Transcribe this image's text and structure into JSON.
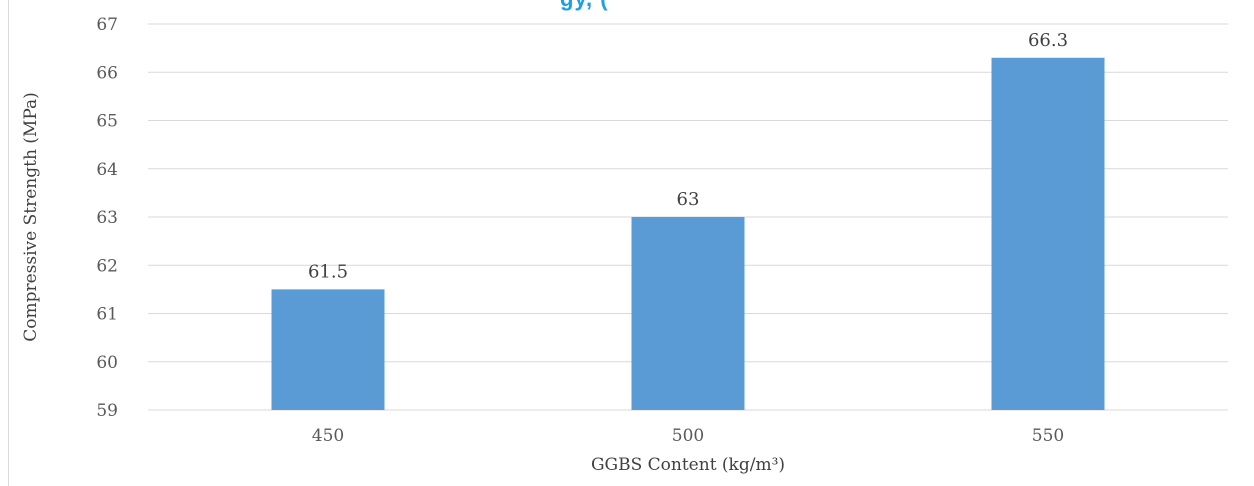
{
  "chart_data": {
    "type": "bar",
    "title_fragment": "gy, (",
    "categories": [
      "450",
      "500",
      "550"
    ],
    "values": [
      61.5,
      63,
      66.3
    ],
    "data_labels": [
      "61.5",
      "63",
      "66.3"
    ],
    "xlabel": "GGBS Content (kg/m³)",
    "ylabel": "Compressive Strength (MPa)",
    "ylim": [
      59,
      67
    ],
    "yticks": [
      59,
      60,
      61,
      62,
      63,
      64,
      65,
      66,
      67
    ],
    "grid": true,
    "legend": "none",
    "bar_color": "#5b9bd5",
    "grid_color": "#d9d9d9"
  }
}
